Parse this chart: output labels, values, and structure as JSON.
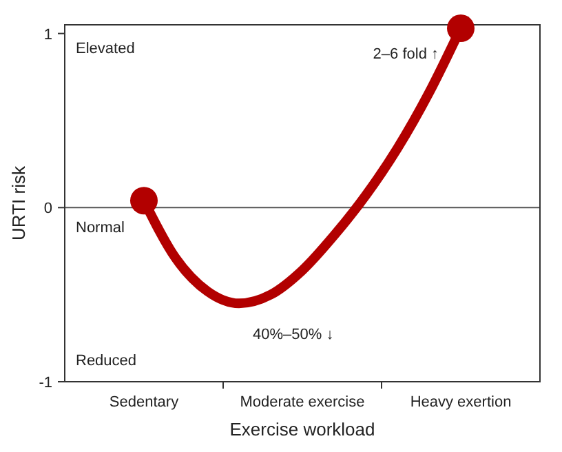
{
  "chart_data": {
    "type": "line",
    "xlabel": "Exercise workload",
    "ylabel": "URTI risk",
    "categories": [
      null,
      null,
      "Sedentary",
      null,
      null,
      null,
      null,
      "Moderate exercise",
      null,
      null,
      null,
      null,
      "Heavy exertion",
      null,
      null
    ],
    "ylim": [
      -1,
      1.05
    ],
    "yticks": [
      -1,
      0,
      1
    ],
    "ref_lines": [
      {
        "axis": "y",
        "value": 0,
        "color": "#555555"
      }
    ],
    "annotations": [
      "Elevated",
      "Normal",
      "Reduced",
      "2–6 fold ↑",
      "40%–50% ↓"
    ],
    "series": [
      {
        "color": "#b20000",
        "values": [
          null,
          null,
          0.04,
          -0.29,
          -0.48,
          -0.55,
          -0.5,
          -0.36,
          -0.16,
          0.07,
          0.34,
          0.66,
          1.03,
          null,
          null
        ]
      },
      {
        "type": "scatter",
        "marker": "circle",
        "color": "#b20000",
        "values": [
          null,
          null,
          0.04,
          null,
          null,
          null,
          null,
          null,
          null,
          null,
          null,
          null,
          1.03,
          null,
          null
        ]
      }
    ],
    "marker": "none",
    "line_style": "solid"
  }
}
